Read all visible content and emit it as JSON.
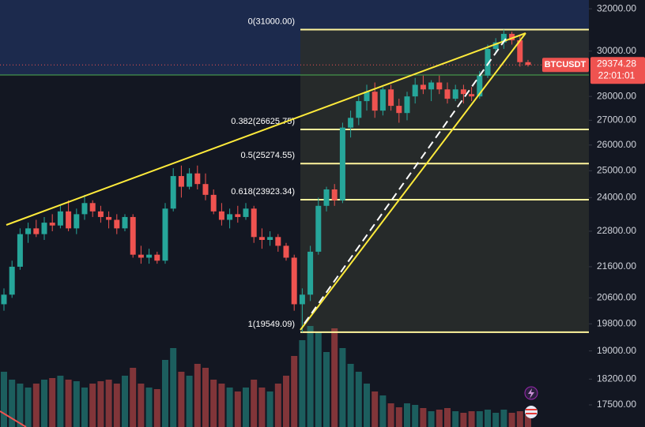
{
  "chart_data": {
    "type": "candlestick",
    "symbol": "BTCUSDT",
    "countdown": "22:01:01",
    "log_scale": true,
    "ylim": [
      16920,
      32430
    ],
    "yticks": [
      {
        "value": 32000,
        "label": "32000.00"
      },
      {
        "value": 30000,
        "label": "30000.00"
      },
      {
        "value": 28000,
        "label": "28000.00"
      },
      {
        "value": 27000,
        "label": "27000.00"
      },
      {
        "value": 26000,
        "label": "26000.00"
      },
      {
        "value": 25000,
        "label": "25000.00"
      },
      {
        "value": 24000,
        "label": "24000.00"
      },
      {
        "value": 22800,
        "label": "22800.00"
      },
      {
        "value": 21600,
        "label": "21600.00"
      },
      {
        "value": 20600,
        "label": "20600.00"
      },
      {
        "value": 19800,
        "label": "19800.00"
      },
      {
        "value": 19000,
        "label": "19000.00"
      },
      {
        "value": 18200,
        "label": "18200.00"
      },
      {
        "value": 17500,
        "label": "17500.00"
      }
    ],
    "fib_levels": [
      {
        "value": 31000,
        "label": "0(31000.00)"
      },
      {
        "value": 26625.75,
        "label": "0.382(26625.75)"
      },
      {
        "value": 25274.55,
        "label": "0.5(25274.55)"
      },
      {
        "value": 23923.34,
        "label": "0.618(23923.34)"
      },
      {
        "value": 19549.09,
        "label": "1(19549.09)"
      }
    ],
    "up_color": "#26a69a",
    "down_color": "#ef5350",
    "ohlc": [
      [
        20400,
        20900,
        20200,
        20700
      ],
      [
        20700,
        21800,
        20600,
        21600
      ],
      [
        21600,
        22900,
        21500,
        22700
      ],
      [
        22700,
        23100,
        22400,
        22900
      ],
      [
        22900,
        23200,
        22600,
        22700
      ],
      [
        22700,
        23300,
        22500,
        23100
      ],
      [
        23100,
        23400,
        22800,
        23000
      ],
      [
        23000,
        23700,
        22900,
        23500
      ],
      [
        23500,
        23900,
        22800,
        22900
      ],
      [
        22900,
        23600,
        22700,
        23400
      ],
      [
        23400,
        24100,
        23200,
        23800
      ],
      [
        23800,
        23900,
        23300,
        23500
      ],
      [
        23500,
        23700,
        23100,
        23300
      ],
      [
        23300,
        23500,
        22900,
        23200
      ],
      [
        23200,
        23400,
        22700,
        22900
      ],
      [
        22900,
        23400,
        22800,
        23300
      ],
      [
        23300,
        23400,
        21900,
        22000
      ],
      [
        22000,
        22300,
        21700,
        21900
      ],
      [
        21900,
        22200,
        21700,
        22000
      ],
      [
        22000,
        22100,
        21700,
        21800
      ],
      [
        21800,
        23800,
        21700,
        23600
      ],
      [
        23600,
        25100,
        23500,
        24800
      ],
      [
        24800,
        25200,
        24000,
        24400
      ],
      [
        24400,
        25100,
        24300,
        24900
      ],
      [
        24900,
        25200,
        24300,
        24500
      ],
      [
        24500,
        24900,
        23900,
        24100
      ],
      [
        24100,
        24300,
        23400,
        23500
      ],
      [
        23500,
        23800,
        23000,
        23200
      ],
      [
        23200,
        23600,
        22900,
        23400
      ],
      [
        23400,
        23700,
        23100,
        23300
      ],
      [
        23300,
        23800,
        23200,
        23600
      ],
      [
        23600,
        23700,
        22400,
        22600
      ],
      [
        22600,
        22900,
        22200,
        22500
      ],
      [
        22500,
        22800,
        22300,
        22600
      ],
      [
        22600,
        22700,
        22100,
        22300
      ],
      [
        22300,
        22400,
        21800,
        21900
      ],
      [
        21900,
        22000,
        20200,
        20400
      ],
      [
        20400,
        20900,
        19549,
        20700
      ],
      [
        20700,
        22300,
        20500,
        22100
      ],
      [
        22100,
        24000,
        22000,
        23700
      ],
      [
        23700,
        24400,
        23500,
        24300
      ],
      [
        24300,
        24500,
        23700,
        23900
      ],
      [
        23900,
        26900,
        23800,
        26700
      ],
      [
        26700,
        27400,
        26300,
        27100
      ],
      [
        27100,
        28000,
        26800,
        27800
      ],
      [
        27800,
        28500,
        27400,
        28200
      ],
      [
        28200,
        28600,
        27100,
        27400
      ],
      [
        27400,
        28400,
        27200,
        28300
      ],
      [
        28300,
        28500,
        27400,
        27600
      ],
      [
        27600,
        27900,
        26900,
        27300
      ],
      [
        27300,
        28200,
        27000,
        28000
      ],
      [
        28000,
        28800,
        27700,
        28500
      ],
      [
        28500,
        28900,
        28100,
        28300
      ],
      [
        28300,
        28700,
        27800,
        28600
      ],
      [
        28600,
        28900,
        28100,
        28300
      ],
      [
        28300,
        28600,
        27700,
        27900
      ],
      [
        27900,
        28500,
        27800,
        28300
      ],
      [
        28300,
        28500,
        27700,
        28100
      ],
      [
        28100,
        28400,
        27800,
        28000
      ],
      [
        28000,
        29100,
        27900,
        28900
      ],
      [
        28900,
        30300,
        28800,
        30100
      ],
      [
        30100,
        30600,
        29900,
        30400
      ],
      [
        30400,
        31000,
        30100,
        30800
      ],
      [
        30800,
        30900,
        30300,
        30500
      ],
      [
        30500,
        30700,
        29300,
        29500
      ],
      [
        29500,
        29600,
        29300,
        29374.28
      ]
    ],
    "volume": [
      70,
      60,
      55,
      50,
      55,
      60,
      62,
      65,
      60,
      58,
      50,
      55,
      58,
      60,
      55,
      65,
      75,
      55,
      50,
      48,
      85,
      100,
      70,
      65,
      80,
      75,
      60,
      55,
      50,
      45,
      50,
      60,
      50,
      45,
      55,
      65,
      90,
      110,
      128,
      120,
      95,
      125,
      100,
      80,
      70,
      55,
      45,
      40,
      30,
      25,
      30,
      28,
      24,
      20,
      22,
      24,
      20,
      18,
      20,
      20,
      22,
      18,
      22,
      18,
      20,
      15
    ]
  }
}
